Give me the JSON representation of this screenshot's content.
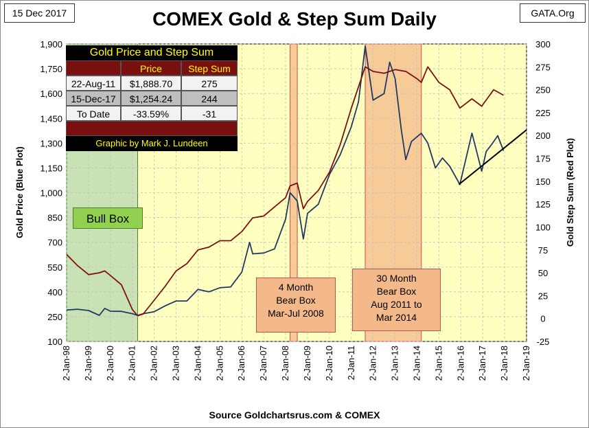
{
  "header": {
    "date": "15 Dec 2017",
    "site": "GATA.Org",
    "title": "COMEX Gold & Step Sum Daily",
    "source": "Source Goldchartsrus.com & COMEX"
  },
  "table": {
    "title": "Gold Price and Step Sum",
    "col_price": "Price",
    "col_step": "Step Sum",
    "rows": [
      {
        "date": "22-Aug-11",
        "price": "$1,888.70",
        "step": "275"
      },
      {
        "date": "15-Dec-17",
        "price": "$1,254.24",
        "step": "244"
      },
      {
        "date": "To Date",
        "price": "-33.59%",
        "step": "-31"
      }
    ],
    "credit": "Graphic by Mark J. Lundeen"
  },
  "annotations": {
    "bull_box": "Bull Box",
    "bear4_lines": [
      "4 Month",
      "Bear Box",
      "Mar-Jul 2008"
    ],
    "bear30_lines": [
      "30 Month",
      "Bear Box",
      "Aug 2011 to",
      "Mar 2014"
    ]
  },
  "colors": {
    "plot_bg": "#ffffc0",
    "gold_line": "#1f3864",
    "step_line": "#7b1010",
    "bull_shade": "#c6e0b4",
    "bear_shade": "#f4b98a"
  },
  "chart_data": {
    "type": "line",
    "title": "COMEX Gold & Step Sum Daily",
    "ylabel": "Gold Price   (Blue Plot)",
    "y2label": "Gold Step Sum   (Red Plot)",
    "ylim": [
      100,
      1900
    ],
    "y2lim": [
      -25,
      300
    ],
    "yticks": [
      100,
      250,
      400,
      550,
      700,
      850,
      1000,
      1150,
      1300,
      1450,
      1600,
      1750,
      1900
    ],
    "y2ticks": [
      -25,
      0,
      25,
      50,
      75,
      100,
      125,
      150,
      175,
      200,
      225,
      250,
      275,
      300
    ],
    "xlim": [
      "1998-01-02",
      "2019-01-02"
    ],
    "xtick_labels": [
      "2-Jan-98",
      "2-Jan-99",
      "2-Jan-00",
      "2-Jan-01",
      "2-Jan-02",
      "2-Jan-03",
      "2-Jan-04",
      "2-Jan-05",
      "2-Jan-06",
      "2-Jan-07",
      "2-Jan-08",
      "2-Jan-09",
      "2-Jan-10",
      "2-Jan-11",
      "2-Jan-12",
      "2-Jan-13",
      "2-Jan-14",
      "2-Jan-15",
      "2-Jan-16",
      "2-Jan-17",
      "2-Jan-18",
      "2-Jan-19"
    ],
    "grid": true,
    "shaded_periods": [
      {
        "label": "Bull Box",
        "start": "1998-01-02",
        "end": "2001-04-01"
      },
      {
        "label": "4 Month Bear Box",
        "start": "2008-03-17",
        "end": "2008-07-15"
      },
      {
        "label": "30 Month Bear Box",
        "start": "2011-08-22",
        "end": "2014-03-15"
      }
    ],
    "trendline": {
      "start": [
        "2015-12-01",
        1050
      ],
      "end": [
        "2019-01-02",
        1380
      ]
    },
    "series": [
      {
        "axis": "left",
        "x": [
          "1998-01-02",
          "1998-07-01",
          "1999-01-04",
          "1999-07-01",
          "1999-10-01",
          "2000-01-03",
          "2000-07-03",
          "2001-01-02",
          "2001-04-02",
          "2001-07-02",
          "2002-01-02",
          "2002-07-01",
          "2003-01-02",
          "2003-07-01",
          "2004-01-02",
          "2004-07-01",
          "2005-01-03",
          "2005-07-01",
          "2006-01-03",
          "2006-05-12",
          "2006-07-03",
          "2007-01-02",
          "2007-07-02",
          "2008-01-02",
          "2008-03-17",
          "2008-07-15",
          "2008-10-24",
          "2009-01-02",
          "2009-07-01",
          "2010-01-04",
          "2010-07-01",
          "2011-01-03",
          "2011-05-02",
          "2011-08-22",
          "2011-12-30",
          "2012-07-02",
          "2012-10-04",
          "2013-01-02",
          "2013-04-15",
          "2013-06-28",
          "2013-10-01",
          "2014-03-14",
          "2014-07-01",
          "2014-11-05",
          "2015-03-02",
          "2015-07-01",
          "2015-12-17",
          "2016-07-06",
          "2016-12-15",
          "2017-03-01",
          "2017-06-06",
          "2017-09-08",
          "2017-12-15"
        ],
        "y": [
          290,
          295,
          287,
          258,
          300,
          283,
          282,
          268,
          258,
          268,
          280,
          315,
          345,
          345,
          415,
          400,
          425,
          430,
          520,
          700,
          630,
          635,
          660,
          840,
          1000,
          950,
          720,
          875,
          930,
          1110,
          1230,
          1400,
          1550,
          1888,
          1560,
          1600,
          1790,
          1690,
          1380,
          1200,
          1310,
          1360,
          1300,
          1150,
          1210,
          1160,
          1050,
          1360,
          1130,
          1250,
          1295,
          1345,
          1254
        ]
      },
      {
        "axis": "right",
        "x": [
          "1998-01-02",
          "1998-07-01",
          "1999-01-04",
          "1999-07-01",
          "1999-10-01",
          "2000-01-03",
          "2000-07-03",
          "2001-01-02",
          "2001-04-02",
          "2001-07-02",
          "2002-01-02",
          "2002-07-01",
          "2003-01-02",
          "2003-07-01",
          "2004-01-02",
          "2004-07-01",
          "2005-01-03",
          "2005-07-01",
          "2006-01-03",
          "2006-07-03",
          "2007-01-02",
          "2007-07-02",
          "2008-01-02",
          "2008-03-17",
          "2008-07-15",
          "2008-10-24",
          "2009-01-02",
          "2009-07-01",
          "2010-01-04",
          "2010-07-01",
          "2011-01-03",
          "2011-08-22",
          "2012-01-03",
          "2012-07-02",
          "2013-01-02",
          "2013-07-01",
          "2014-01-02",
          "2014-03-14",
          "2014-07-01",
          "2015-01-02",
          "2015-07-01",
          "2015-12-17",
          "2016-07-06",
          "2016-12-15",
          "2017-07-03",
          "2017-12-15"
        ],
        "y": [
          70,
          58,
          48,
          50,
          52,
          47,
          37,
          10,
          3,
          5,
          20,
          35,
          52,
          60,
          75,
          78,
          85,
          85,
          95,
          110,
          112,
          122,
          132,
          145,
          148,
          120,
          128,
          140,
          160,
          190,
          230,
          275,
          270,
          268,
          272,
          270,
          262,
          258,
          275,
          258,
          250,
          230,
          240,
          232,
          250,
          244
        ]
      }
    ]
  }
}
